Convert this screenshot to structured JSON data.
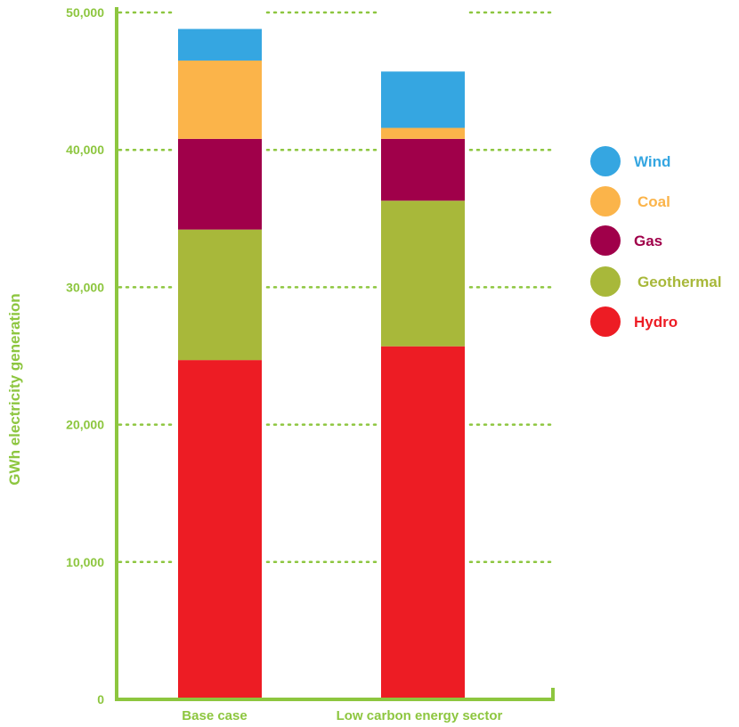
{
  "chart_data": {
    "type": "bar",
    "stacked": true,
    "title": "",
    "xlabel": "",
    "ylabel": "GWh electricity generation",
    "ylim": [
      0,
      50000
    ],
    "yticks": [
      "0",
      "10,000",
      "20,000",
      "30,000",
      "40,000",
      "50,000"
    ],
    "grid": "dotted horizontal",
    "legend_position": "right",
    "categories": [
      "Base case",
      "Low carbon energy sector"
    ],
    "series": [
      {
        "name": "Hydro",
        "color": "#ed1c24",
        "values": [
          24700,
          25700
        ]
      },
      {
        "name": "Geothermal",
        "color": "#a8b83a",
        "values": [
          9500,
          10600
        ]
      },
      {
        "name": "Gas",
        "color": "#a0004a",
        "values": [
          6600,
          4500
        ]
      },
      {
        "name": "Coal",
        "color": "#fbb44a",
        "values": [
          5700,
          800
        ]
      },
      {
        "name": "Wind",
        "color": "#35a6e1",
        "values": [
          2300,
          4100
        ]
      }
    ],
    "legend_order": [
      "Wind",
      "Coal",
      "Gas",
      "Geothermal",
      "Hydro"
    ]
  }
}
